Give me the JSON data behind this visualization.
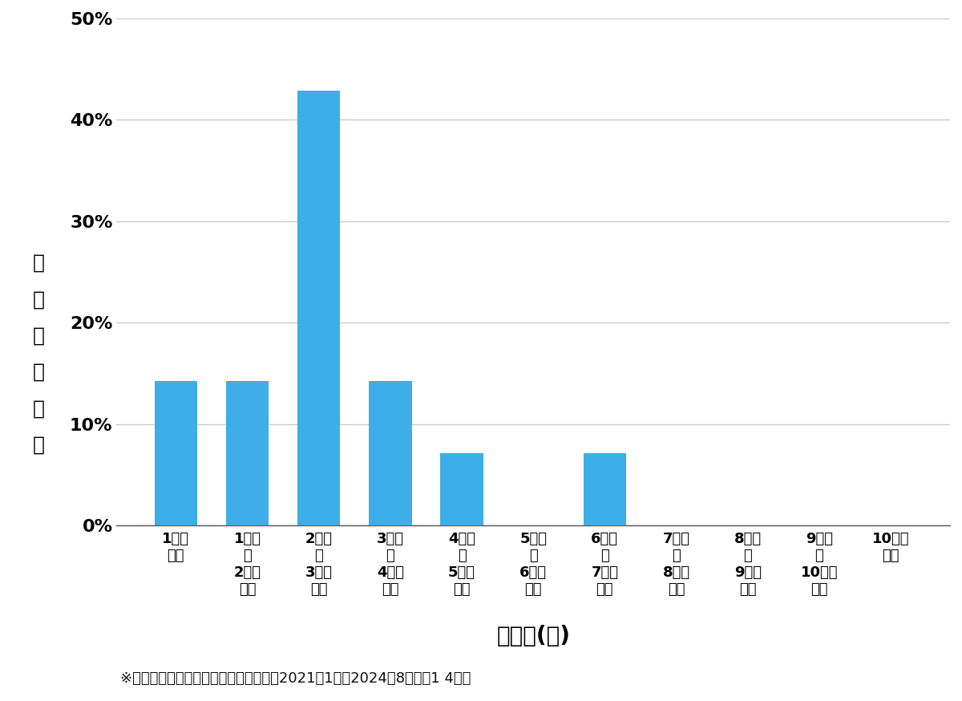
{
  "categories": [
    "1万円\n未満",
    "1万円\n～\n2万円\n未満",
    "2万円\n～\n3万円\n未満",
    "3万円\n～\n4万円\n未満",
    "4万円\n～\n5万円\n未満",
    "5万円\n～\n6万円\n未満",
    "6万円\n～\n7万円\n未満",
    "7万円\n～\n8万円\n未満",
    "8万円\n～\n9万円\n未満",
    "9万円\n～\n10万円\n未満",
    "10万円\n以上"
  ],
  "ylabel_chars": [
    "価",
    "格",
    "帯",
    "の",
    "割",
    "合"
  ],
  "values": [
    0.142857,
    0.142857,
    0.428571,
    0.142857,
    0.071429,
    0.0,
    0.071429,
    0.0,
    0.0,
    0.0,
    0.0
  ],
  "bar_color": "#3daee9",
  "xlabel": "価格帯(円)",
  "footnote": "※弊社受付の案件を対象に集計（期間：2021年1月～2024年8月、耔1 4件）",
  "ylim": [
    0,
    0.5
  ],
  "yticks": [
    0.0,
    0.1,
    0.2,
    0.3,
    0.4,
    0.5
  ],
  "ytick_labels": [
    "0%",
    "10%",
    "20%",
    "30%",
    "40%",
    "50%"
  ],
  "background_color": "#ffffff",
  "bar_width": 0.6,
  "grid_color": "#cccccc",
  "tick_fontsize": 14,
  "footnote_fontsize": 13,
  "ylabel_fontsize": 18,
  "xlabel_fontsize": 20
}
